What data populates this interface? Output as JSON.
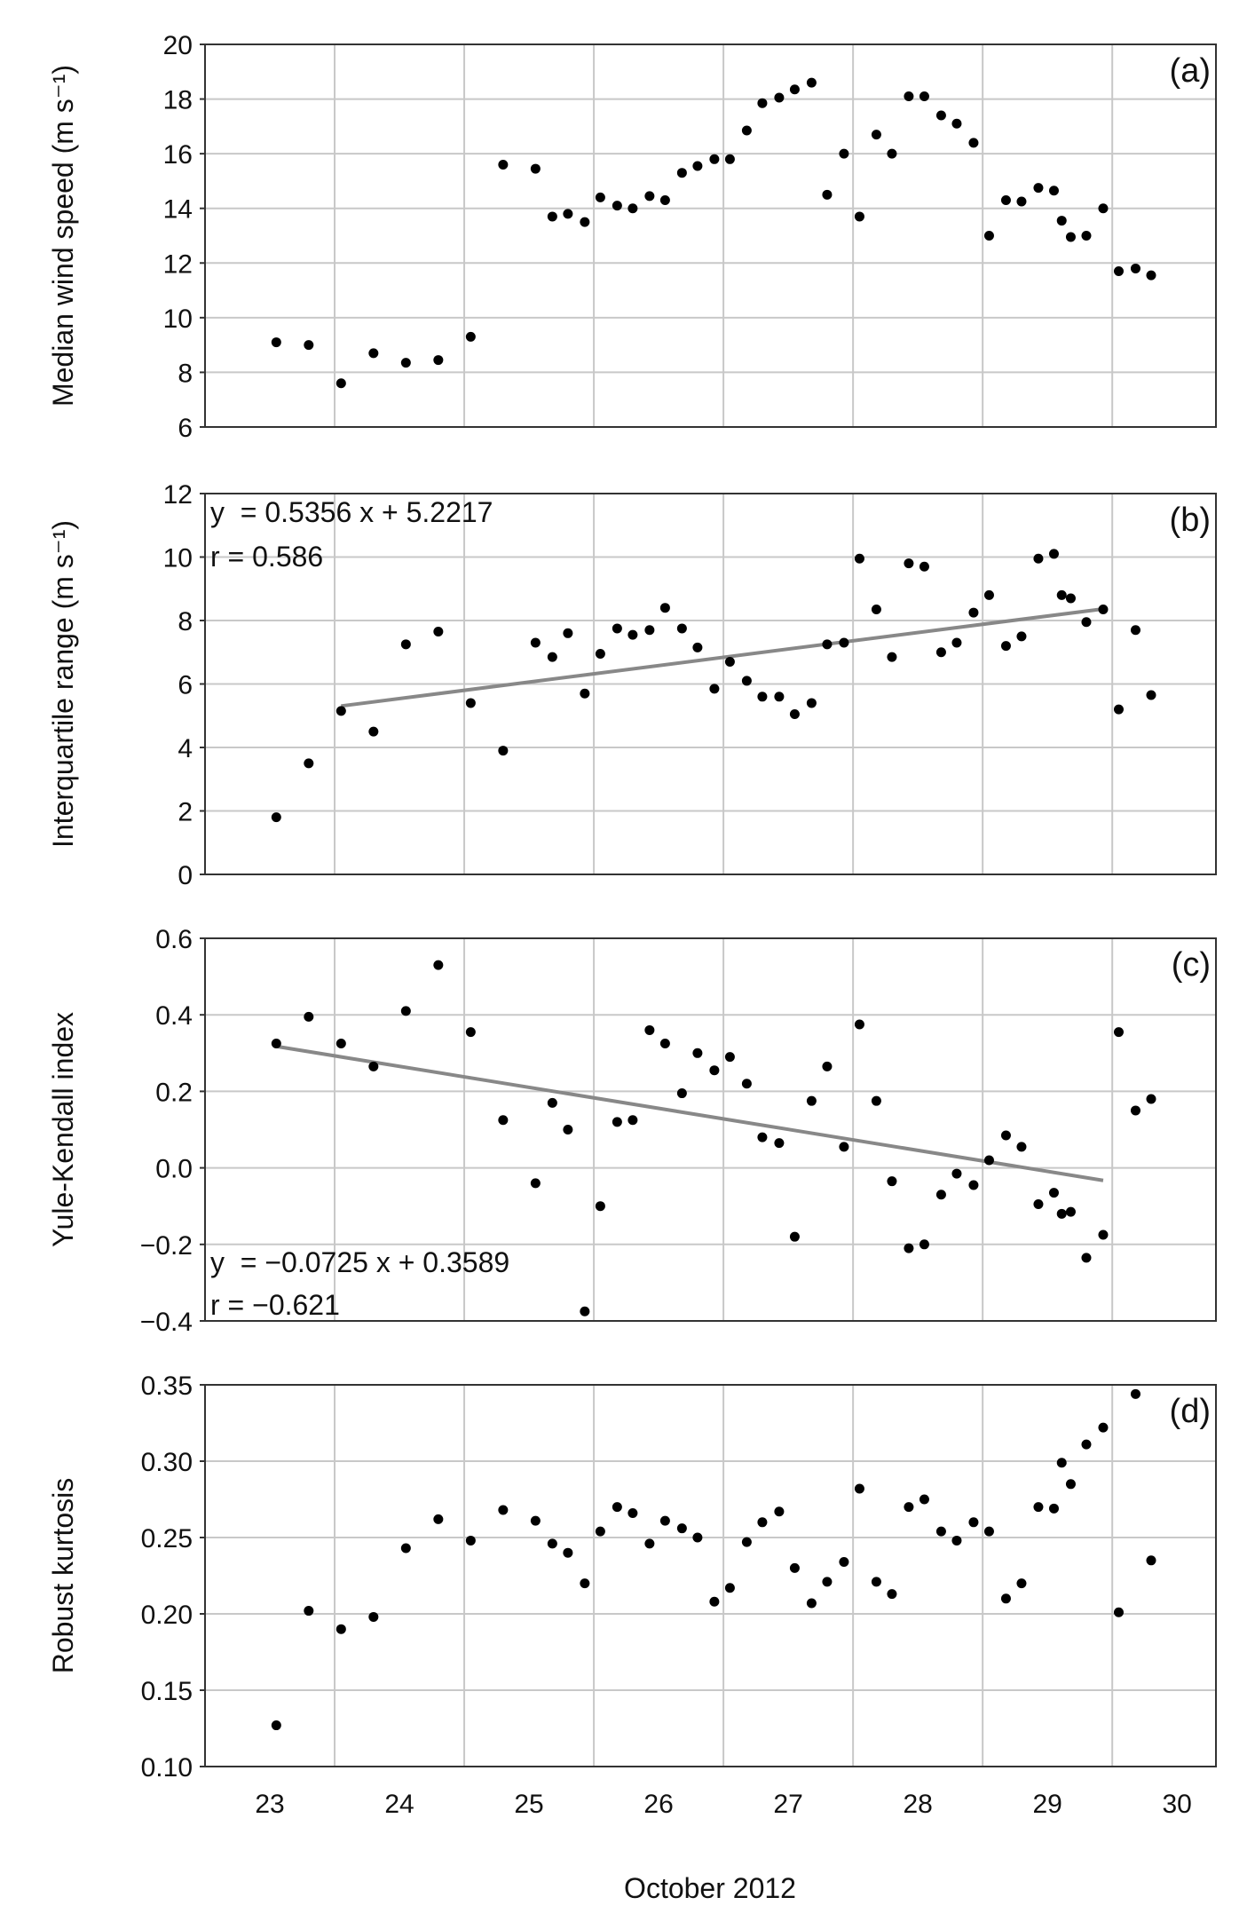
{
  "xlabel": "October 2012",
  "x_ticks": [
    "23",
    "24",
    "25",
    "26",
    "27",
    "28",
    "29",
    "30"
  ],
  "x_tick_values": [
    23,
    24,
    25,
    26,
    27,
    28,
    29,
    30
  ],
  "xlim": [
    22.5,
    30.3
  ],
  "grid_x": [
    22.5,
    23.5,
    24.5,
    25.5,
    26.5,
    27.5,
    28.5,
    29.5
  ],
  "x": [
    23.05,
    23.3,
    23.55,
    23.8,
    24.05,
    24.3,
    24.55,
    24.8,
    25.05,
    25.18,
    25.3,
    25.43,
    25.55,
    25.68,
    25.8,
    25.93,
    26.05,
    26.18,
    26.3,
    26.43,
    26.55,
    26.68,
    26.8,
    26.93,
    27.05,
    27.18,
    27.3,
    27.43,
    27.55,
    27.68,
    27.8,
    27.93,
    28.05,
    28.18,
    28.3,
    28.43,
    28.55,
    28.68,
    28.8,
    28.93,
    29.05,
    29.11,
    29.18,
    29.3,
    29.43,
    29.55,
    29.68,
    29.8
  ],
  "chart_data": [
    {
      "type": "scatter",
      "panel": "(a)",
      "ylabel": "Median wind speed (m s⁻¹)",
      "ylim": [
        6,
        20
      ],
      "yticks": [
        "6",
        "8",
        "10",
        "12",
        "14",
        "16",
        "18",
        "20"
      ],
      "ytick_values": [
        6,
        8,
        10,
        12,
        14,
        16,
        18,
        20
      ],
      "values": [
        9.1,
        9.0,
        7.6,
        8.7,
        8.35,
        8.45,
        9.3,
        15.6,
        15.45,
        13.7,
        13.8,
        13.5,
        14.4,
        14.1,
        14.0,
        14.45,
        14.3,
        15.3,
        15.55,
        15.8,
        15.8,
        16.85,
        17.85,
        18.05,
        18.35,
        18.6,
        14.5,
        16.0,
        13.7,
        16.7,
        16.0,
        18.1,
        18.1,
        17.4,
        17.1,
        16.4,
        13.0,
        14.3,
        14.25,
        14.75,
        14.65,
        13.55,
        12.95,
        13.0,
        14.0,
        11.7,
        11.8,
        11.55
      ],
      "trend": null,
      "equation": null,
      "r_text": null
    },
    {
      "type": "scatter",
      "panel": "(b)",
      "ylabel": "Interquartile range (m s⁻¹)",
      "ylim": [
        0,
        12
      ],
      "yticks": [
        "0",
        "2",
        "4",
        "6",
        "8",
        "10",
        "12"
      ],
      "ytick_values": [
        0,
        2,
        4,
        6,
        8,
        10,
        12
      ],
      "values": [
        1.8,
        3.5,
        5.15,
        4.5,
        7.25,
        7.65,
        5.4,
        3.9,
        7.3,
        6.85,
        7.6,
        5.7,
        6.95,
        7.75,
        7.55,
        7.7,
        8.4,
        7.75,
        7.15,
        5.85,
        6.7,
        6.1,
        5.6,
        5.6,
        5.05,
        5.4,
        7.25,
        7.3,
        9.95,
        8.35,
        6.85,
        9.8,
        9.7,
        7.0,
        7.3,
        8.25,
        8.8,
        7.2,
        7.5,
        9.95,
        10.1,
        8.8,
        8.7,
        7.95,
        8.35,
        5.2,
        7.7,
        5.65
      ],
      "trend": {
        "x0": 23.55,
        "x1": 29.43
      },
      "equation": "y  = 0.5356 x + 5.2217",
      "r_text": "r = 0.586"
    },
    {
      "type": "scatter",
      "panel": "(c)",
      "ylabel": "Yule-Kendall index",
      "ylim": [
        -0.4,
        0.6
      ],
      "yticks": [
        "−0.4",
        "−0.2",
        "0.0",
        "0.2",
        "0.4",
        "0.6"
      ],
      "ytick_values": [
        -0.4,
        -0.2,
        0.0,
        0.2,
        0.4,
        0.6
      ],
      "values": [
        0.325,
        0.395,
        0.325,
        0.265,
        0.41,
        0.53,
        0.355,
        0.125,
        -0.04,
        0.17,
        0.1,
        -0.375,
        -0.1,
        0.12,
        0.125,
        0.36,
        0.325,
        0.195,
        0.3,
        0.255,
        0.29,
        0.22,
        0.08,
        0.065,
        -0.18,
        0.175,
        0.265,
        0.055,
        0.375,
        0.175,
        -0.035,
        -0.21,
        -0.2,
        -0.07,
        -0.015,
        -0.045,
        0.02,
        0.085,
        0.055,
        -0.095,
        -0.065,
        -0.12,
        -0.115,
        -0.235,
        -0.175,
        0.355,
        0.15,
        0.18
      ],
      "trend": {
        "x0": 23.05,
        "x1": 29.43
      },
      "equation": "y  = −0.0725 x + 0.3589",
      "r_text": "r = −0.621"
    },
    {
      "type": "scatter",
      "panel": "(d)",
      "ylabel": "Robust kurtosis",
      "ylim": [
        0.1,
        0.35
      ],
      "yticks": [
        "0.10",
        "0.15",
        "0.20",
        "0.25",
        "0.30",
        "0.35"
      ],
      "ytick_values": [
        0.1,
        0.15,
        0.2,
        0.25,
        0.3,
        0.35
      ],
      "values": [
        0.127,
        0.202,
        0.19,
        0.198,
        0.243,
        0.262,
        0.248,
        0.268,
        0.261,
        0.246,
        0.24,
        0.22,
        0.254,
        0.27,
        0.266,
        0.246,
        0.261,
        0.256,
        0.25,
        0.208,
        0.217,
        0.247,
        0.26,
        0.267,
        0.23,
        0.207,
        0.221,
        0.234,
        0.282,
        0.221,
        0.213,
        0.27,
        0.275,
        0.254,
        0.248,
        0.26,
        0.254,
        0.21,
        0.22,
        0.27,
        0.269,
        0.299,
        0.285,
        0.311,
        0.322,
        0.201,
        0.344,
        0.235
      ],
      "trend": null,
      "equation": null,
      "r_text": null
    }
  ]
}
